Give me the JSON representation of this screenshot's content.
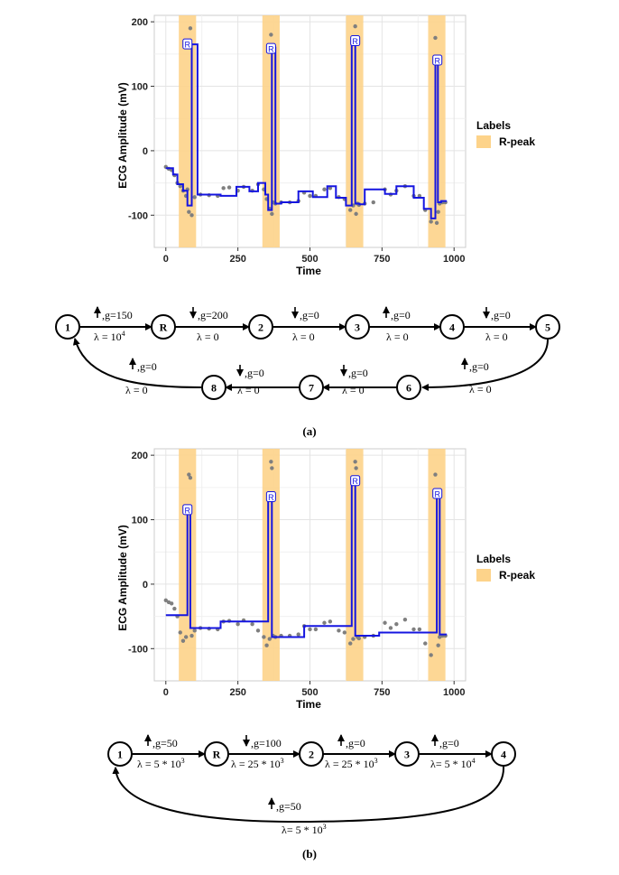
{
  "figure": {
    "caption_a": "(a)",
    "caption_b": "(b)"
  },
  "legend": {
    "title": "Labels",
    "item": "R-peak",
    "color": "#FDD38A"
  },
  "colors": {
    "fit_line": "#1515E0",
    "points": "#7F7F7F",
    "node_stroke": "#000000"
  },
  "chart_data": [
    {
      "type": "line",
      "panel": "a",
      "xlabel": "Time",
      "ylabel": "ECG Amplitude (mV)",
      "xlim": [
        -40,
        1040
      ],
      "ylim": [
        -150,
        210
      ],
      "xticks": [
        0,
        250,
        500,
        750,
        1000
      ],
      "yticks": [
        -100,
        0,
        100,
        200
      ],
      "grid": true,
      "legend_position": "right",
      "shaded_regions": [
        [
          45,
          105
        ],
        [
          335,
          395
        ],
        [
          625,
          685
        ],
        [
          910,
          970
        ]
      ],
      "peak_label": "R",
      "peak_markers": [
        {
          "x": 75,
          "y": 165
        },
        {
          "x": 365,
          "y": 158
        },
        {
          "x": 657,
          "y": 170
        },
        {
          "x": 942,
          "y": 140
        }
      ],
      "series": [
        {
          "role": "fitted",
          "x": [
            0,
            25,
            25,
            40,
            40,
            60,
            60,
            75,
            75,
            90,
            90,
            110,
            110,
            190,
            190,
            245,
            245,
            290,
            290,
            320,
            320,
            345,
            345,
            355,
            355,
            368,
            368,
            380,
            380,
            400,
            400,
            460,
            460,
            510,
            510,
            560,
            560,
            590,
            590,
            625,
            625,
            645,
            645,
            657,
            657,
            672,
            672,
            690,
            690,
            760,
            760,
            800,
            800,
            860,
            860,
            895,
            895,
            920,
            920,
            935,
            935,
            944,
            944,
            955,
            955,
            975
          ],
          "y": [
            -27,
            -27,
            -37,
            -37,
            -52,
            -52,
            -62,
            -62,
            -85,
            -85,
            165,
            165,
            -68,
            -68,
            -70,
            -70,
            -56,
            -56,
            -63,
            -63,
            -50,
            -50,
            -68,
            -68,
            -92,
            -92,
            160,
            160,
            -82,
            -82,
            -80,
            -80,
            -63,
            -63,
            -72,
            -72,
            -55,
            -55,
            -73,
            -73,
            -85,
            -85,
            168,
            168,
            -82,
            -82,
            -83,
            -83,
            -60,
            -60,
            -67,
            -67,
            -55,
            -55,
            -73,
            -73,
            -90,
            -90,
            -105,
            -105,
            140,
            140,
            -80,
            -80,
            -78,
            -78
          ]
        },
        {
          "role": "observed",
          "x": [
            0,
            10,
            20,
            30,
            40,
            50,
            60,
            70,
            75,
            80,
            85,
            90,
            100,
            120,
            150,
            180,
            200,
            220,
            250,
            270,
            300,
            320,
            340,
            350,
            360,
            365,
            368,
            372,
            380,
            400,
            430,
            460,
            480,
            500,
            520,
            550,
            570,
            600,
            620,
            640,
            650,
            657,
            660,
            665,
            670,
            690,
            720,
            760,
            780,
            800,
            830,
            860,
            880,
            900,
            920,
            935,
            940,
            945,
            950,
            960,
            970
          ],
          "y": [
            -25,
            -28,
            -30,
            -38,
            -50,
            -55,
            -62,
            -70,
            -60,
            -95,
            190,
            -100,
            -72,
            -68,
            -69,
            -70,
            -58,
            -57,
            -62,
            -56,
            -62,
            -52,
            -60,
            -75,
            -90,
            180,
            -98,
            -80,
            -82,
            -80,
            -80,
            -78,
            -65,
            -70,
            -70,
            -60,
            -58,
            -72,
            -75,
            -92,
            -85,
            193,
            -98,
            -82,
            -84,
            -82,
            -80,
            -60,
            -68,
            -62,
            -55,
            -70,
            -70,
            -92,
            -110,
            175,
            -112,
            -95,
            -82,
            -80,
            -80
          ]
        }
      ]
    },
    {
      "type": "line",
      "panel": "b",
      "xlabel": "Time",
      "ylabel": "ECG Amplitude (mV)",
      "xlim": [
        -40,
        1040
      ],
      "ylim": [
        -150,
        210
      ],
      "xticks": [
        0,
        250,
        500,
        750,
        1000
      ],
      "yticks": [
        -100,
        0,
        100,
        200
      ],
      "grid": true,
      "legend_position": "right",
      "shaded_regions": [
        [
          45,
          105
        ],
        [
          335,
          395
        ],
        [
          625,
          685
        ],
        [
          910,
          970
        ]
      ],
      "peak_label": "R",
      "peak_markers": [
        {
          "x": 75,
          "y": 115
        },
        {
          "x": 365,
          "y": 135
        },
        {
          "x": 657,
          "y": 160
        },
        {
          "x": 942,
          "y": 140
        }
      ],
      "series": [
        {
          "role": "fitted",
          "x": [
            0,
            75,
            75,
            85,
            85,
            190,
            190,
            355,
            355,
            368,
            368,
            480,
            480,
            645,
            645,
            657,
            657,
            740,
            740,
            940,
            940,
            950,
            950,
            975
          ],
          "y": [
            -48,
            -48,
            115,
            115,
            -68,
            -68,
            -58,
            -58,
            130,
            130,
            -82,
            -82,
            -65,
            -65,
            160,
            160,
            -80,
            -80,
            -75,
            -75,
            135,
            135,
            -78,
            -78
          ]
        },
        {
          "role": "observed",
          "x": [
            0,
            10,
            20,
            30,
            40,
            50,
            60,
            70,
            75,
            80,
            85,
            90,
            100,
            120,
            150,
            180,
            200,
            220,
            250,
            270,
            300,
            320,
            340,
            350,
            360,
            365,
            368,
            372,
            380,
            400,
            430,
            460,
            480,
            500,
            520,
            550,
            570,
            600,
            620,
            640,
            650,
            657,
            660,
            665,
            670,
            690,
            720,
            760,
            780,
            800,
            830,
            860,
            880,
            900,
            920,
            935,
            940,
            945,
            950,
            960,
            970
          ],
          "y": [
            -25,
            -28,
            -30,
            -38,
            -50,
            -75,
            -88,
            -82,
            120,
            170,
            165,
            -80,
            -72,
            -68,
            -69,
            -70,
            -58,
            -57,
            -62,
            -56,
            -62,
            -72,
            -82,
            -95,
            -85,
            190,
            180,
            -80,
            -82,
            -80,
            -80,
            -78,
            -65,
            -70,
            -70,
            -60,
            -58,
            -72,
            -75,
            -92,
            -85,
            190,
            180,
            -82,
            -84,
            -82,
            -80,
            -60,
            -68,
            -62,
            -55,
            -70,
            -70,
            -92,
            -110,
            170,
            135,
            -95,
            -82,
            -80,
            -80
          ]
        }
      ]
    }
  ],
  "diagram_a": {
    "nodes": [
      {
        "id": "1",
        "label": "1"
      },
      {
        "id": "R",
        "label": "R"
      },
      {
        "id": "2",
        "label": "2"
      },
      {
        "id": "3",
        "label": "3"
      },
      {
        "id": "4",
        "label": "4"
      },
      {
        "id": "5",
        "label": "5"
      },
      {
        "id": "6",
        "label": "6"
      },
      {
        "id": "7",
        "label": "7"
      },
      {
        "id": "8",
        "label": "8"
      }
    ],
    "edges": [
      {
        "from": "1",
        "to": "R",
        "dir": "up",
        "g": ",g=150",
        "lambda": "λ = 10",
        "sup": "4"
      },
      {
        "from": "R",
        "to": "2",
        "dir": "down",
        "g": ",g=200",
        "lambda": "λ = 0",
        "sup": ""
      },
      {
        "from": "2",
        "to": "3",
        "dir": "down",
        "g": ",g=0",
        "lambda": "λ = 0",
        "sup": ""
      },
      {
        "from": "3",
        "to": "4",
        "dir": "up",
        "g": ",g=0",
        "lambda": "λ = 0",
        "sup": ""
      },
      {
        "from": "4",
        "to": "5",
        "dir": "down",
        "g": ",g=0",
        "lambda": "λ = 0",
        "sup": ""
      },
      {
        "from": "5",
        "to": "6",
        "dir": "up",
        "g": ",g=0",
        "lambda": "λ = 0",
        "sup": ""
      },
      {
        "from": "6",
        "to": "7",
        "dir": "down",
        "g": ",g=0",
        "lambda": "λ = 0",
        "sup": ""
      },
      {
        "from": "7",
        "to": "8",
        "dir": "down",
        "g": ",g=0",
        "lambda": "λ = 0",
        "sup": ""
      },
      {
        "from": "8",
        "to": "1",
        "dir": "up",
        "g": ",g=0",
        "lambda": "λ = 0",
        "sup": ""
      }
    ]
  },
  "diagram_b": {
    "nodes": [
      {
        "id": "1",
        "label": "1"
      },
      {
        "id": "R",
        "label": "R"
      },
      {
        "id": "2",
        "label": "2"
      },
      {
        "id": "3",
        "label": "3"
      },
      {
        "id": "4",
        "label": "4"
      }
    ],
    "edges": [
      {
        "from": "1",
        "to": "R",
        "dir": "up",
        "g": ",g=50",
        "lambda": "λ = 5 * 10",
        "sup": "3"
      },
      {
        "from": "R",
        "to": "2",
        "dir": "down",
        "g": ",g=100",
        "lambda": "λ = 25 * 10",
        "sup": "3"
      },
      {
        "from": "2",
        "to": "3",
        "dir": "up",
        "g": ",g=0",
        "lambda": "λ = 25 * 10",
        "sup": "3"
      },
      {
        "from": "3",
        "to": "4",
        "dir": "up",
        "g": ",g=0",
        "lambda": "λ= 5 * 10",
        "sup": "4"
      },
      {
        "from": "4",
        "to": "1",
        "dir": "up",
        "g": ",g=50",
        "lambda": "λ= 5 * 10",
        "sup": "3"
      }
    ]
  }
}
